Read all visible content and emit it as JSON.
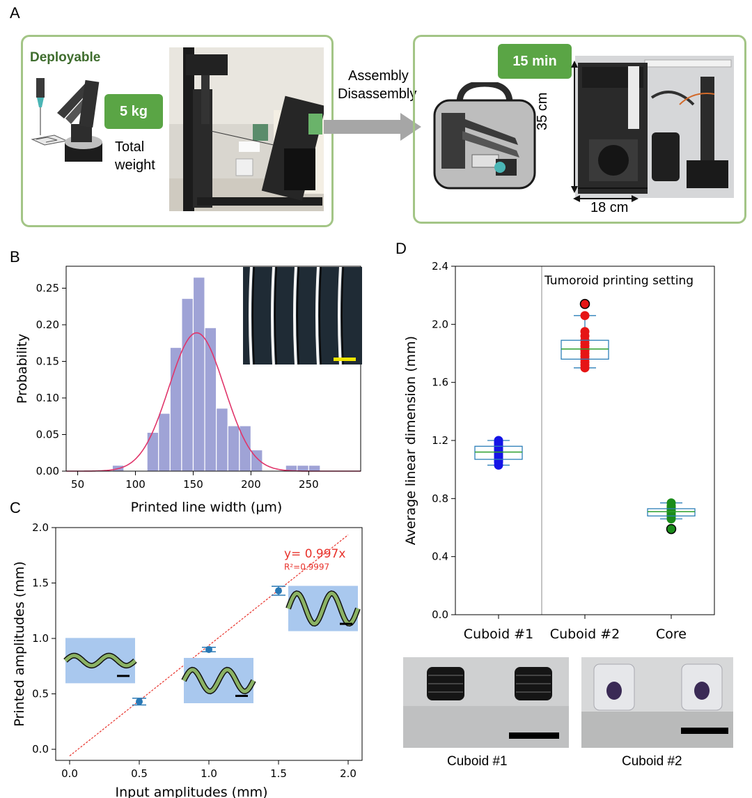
{
  "panels": {
    "a": "A",
    "b": "B",
    "c": "C",
    "d": "D"
  },
  "panel_a": {
    "left": {
      "title": "Deployable",
      "badge": "5 kg",
      "weight_line1": "Total",
      "weight_line2": "weight"
    },
    "arrow": {
      "line1": "Assembly",
      "line2": "Disassembly"
    },
    "right": {
      "badge": "15 min",
      "height_label": "35 cm",
      "width_label": "18 cm"
    }
  },
  "colors": {
    "box_border": "#a3c586",
    "badge": "#5aa545",
    "hist_bar": "#9fa3d6",
    "fit_curve": "#e0356a",
    "scatter": "#2878b5",
    "fit_line": "#e8322b",
    "wave_bg": "#a9c8ee",
    "wave": "#8bb264",
    "box_line": "#2c7fb8",
    "median": "#2ca02c"
  },
  "chart_data": [
    {
      "id": "B",
      "type": "bar",
      "subtype": "histogram",
      "xlabel": "Printed line width (µm)",
      "ylabel": "Probability",
      "xlim": [
        40,
        295
      ],
      "ylim": [
        0,
        0.28
      ],
      "xticks": [
        50,
        100,
        150,
        200,
        250
      ],
      "yticks": [
        0.0,
        0.05,
        0.1,
        0.15,
        0.2,
        0.25
      ],
      "ytick_labels": [
        "0.00",
        "0.05",
        "0.10",
        "0.15",
        "0.20",
        "0.25"
      ],
      "bin_edges": [
        80,
        90,
        100,
        110,
        120,
        130,
        140,
        150,
        160,
        170,
        180,
        190,
        200,
        210,
        220,
        230,
        240,
        250,
        260
      ],
      "values": [
        0.008,
        0,
        0,
        0.053,
        0.079,
        0.169,
        0.236,
        0.265,
        0.196,
        0.086,
        0.062,
        0.062,
        0.029,
        0,
        0,
        0.008,
        0.008,
        0.008
      ],
      "fit": {
        "type": "gaussian",
        "mean": 153,
        "std": 24,
        "peak": 0.189
      }
    },
    {
      "id": "C",
      "type": "scatter",
      "xlabel": "Input amplitudes (mm)",
      "ylabel": "Printed amplitudes (mm)",
      "xlim": [
        -0.1,
        2.1
      ],
      "ylim": [
        -0.1,
        2.0
      ],
      "xticks": [
        0.0,
        0.5,
        1.0,
        1.5,
        2.0
      ],
      "xtick_labels": [
        "0.0",
        "0.5",
        "1.0",
        "1.5",
        "2.0"
      ],
      "yticks": [
        0.0,
        0.5,
        1.0,
        1.5,
        2.0
      ],
      "ytick_labels": [
        "0.0",
        "0.5",
        "1.0",
        "1.5",
        "2.0"
      ],
      "x": [
        0.5,
        1.0,
        1.5
      ],
      "y": [
        0.43,
        0.9,
        1.43
      ],
      "yerr": [
        0.03,
        0.02,
        0.04
      ],
      "fit": {
        "label": "y= 0.997x",
        "r2": "R²=0.9997",
        "slope": 0.997,
        "intercept": -0.06,
        "x_range": [
          0.0,
          2.0
        ]
      }
    },
    {
      "id": "D",
      "type": "box",
      "ylabel": "Average linear dimension (mm)",
      "ylim": [
        0,
        2.4
      ],
      "yticks": [
        0.0,
        0.4,
        0.8,
        1.2,
        1.6,
        2.0,
        2.4
      ],
      "ytick_labels": [
        "0.0",
        "0.4",
        "0.8",
        "1.2",
        "1.6",
        "2.0",
        "2.4"
      ],
      "categories": [
        "Cuboid #1",
        "Cuboid #2",
        "Core"
      ],
      "annotation": "Tumoroid printing setting",
      "boxes": [
        {
          "name": "Cuboid #1",
          "min": 1.03,
          "q1": 1.07,
          "median": 1.12,
          "q3": 1.16,
          "max": 1.2,
          "point_color": "#1515e6",
          "points": [
            1.03,
            1.05,
            1.06,
            1.07,
            1.08,
            1.09,
            1.1,
            1.11,
            1.12,
            1.13,
            1.14,
            1.15,
            1.16,
            1.17,
            1.18,
            1.19,
            1.2
          ],
          "outliers": []
        },
        {
          "name": "Cuboid #2",
          "min": 1.7,
          "q1": 1.76,
          "median": 1.83,
          "q3": 1.89,
          "max": 2.06,
          "point_color": "#e61515",
          "points": [
            1.7,
            1.72,
            1.74,
            1.76,
            1.78,
            1.8,
            1.82,
            1.83,
            1.85,
            1.87,
            1.89,
            1.92,
            1.95,
            2.06
          ],
          "outliers": [
            2.14
          ]
        },
        {
          "name": "Core",
          "min": 0.66,
          "q1": 0.68,
          "median": 0.71,
          "q3": 0.73,
          "max": 0.77,
          "point_color": "#1a8c1a",
          "points": [
            0.66,
            0.67,
            0.68,
            0.69,
            0.7,
            0.71,
            0.72,
            0.73,
            0.74,
            0.75,
            0.77
          ],
          "outliers": [
            0.59
          ]
        }
      ]
    }
  ],
  "bottom_photos": {
    "left": "Cuboid #1",
    "right": "Cuboid #2"
  }
}
